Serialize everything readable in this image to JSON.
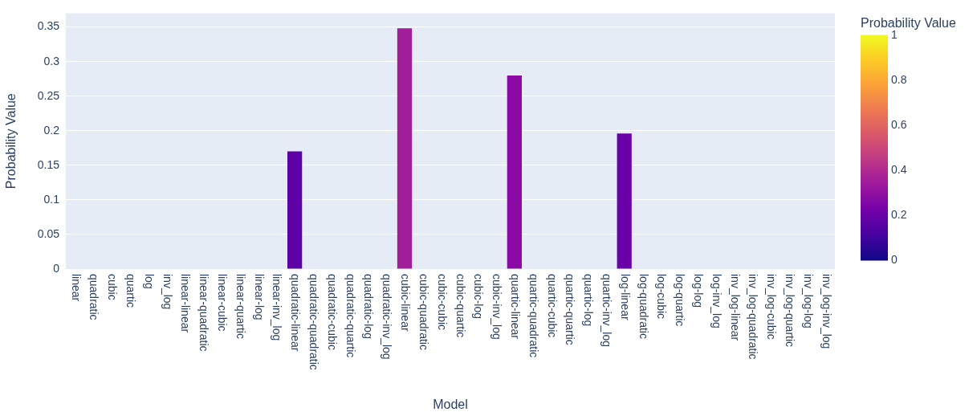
{
  "chart_data": {
    "type": "bar",
    "xlabel": "Model",
    "ylabel": "Probability Value",
    "clabel": "Probability Value",
    "categories": [
      "linear",
      "quadratic",
      "cubic",
      "quartic",
      "log",
      "inv_log",
      "linear-linear",
      "linear-quadratic",
      "linear-cubic",
      "linear-quartic",
      "linear-log",
      "linear-inv_log",
      "quadratic-linear",
      "quadratic-quadratic",
      "quadratic-cubic",
      "quadratic-quartic",
      "quadratic-log",
      "quadratic-inv_log",
      "cubic-linear",
      "cubic-quadratic",
      "cubic-cubic",
      "cubic-quartic",
      "cubic-log",
      "cubic-inv_log",
      "quartic-linear",
      "quartic-quadratic",
      "quartic-cubic",
      "quartic-quartic",
      "quartic-log",
      "quartic-inv_log",
      "log-linear",
      "log-quadratic",
      "log-cubic",
      "log-quartic",
      "log-log",
      "log-inv_log",
      "inv_log-linear",
      "inv_log-quadratic",
      "inv_log-cubic",
      "inv_log-quartic",
      "inv_log-log",
      "inv_log-inv_log"
    ],
    "values": [
      0,
      0,
      0,
      0,
      0,
      0,
      0,
      0,
      0,
      0,
      0,
      0,
      0.17,
      0,
      0,
      0,
      0,
      0,
      0.348,
      0,
      0,
      0,
      0,
      0,
      0.28,
      0,
      0,
      0,
      0,
      0,
      0.196,
      0,
      0,
      0,
      0,
      0,
      0,
      0,
      0,
      0,
      0,
      0
    ],
    "colors": [
      "#0d0887",
      "#0d0887",
      "#0d0887",
      "#0d0887",
      "#0d0887",
      "#0d0887",
      "#0d0887",
      "#0d0887",
      "#0d0887",
      "#0d0887",
      "#0d0887",
      "#0d0887",
      "#5e01a6",
      "#0d0887",
      "#0d0887",
      "#0d0887",
      "#0d0887",
      "#0d0887",
      "#a21d9a",
      "#0d0887",
      "#0d0887",
      "#0d0887",
      "#0d0887",
      "#0d0887",
      "#8b0aa5",
      "#0d0887",
      "#0d0887",
      "#0d0887",
      "#0d0887",
      "#0d0887",
      "#6a00a8",
      "#0d0887",
      "#0d0887",
      "#0d0887",
      "#0d0887",
      "#0d0887",
      "#0d0887",
      "#0d0887",
      "#0d0887",
      "#0d0887",
      "#0d0887",
      "#0d0887"
    ],
    "ylim": [
      0,
      0.37
    ],
    "yticks": [
      0,
      0.05,
      0.1,
      0.15,
      0.2,
      0.25,
      0.3,
      0.35
    ],
    "clim": [
      0,
      1
    ],
    "cticks": [
      0,
      0.2,
      0.4,
      0.6,
      0.8,
      1
    ],
    "grid": "y",
    "legend": false
  }
}
